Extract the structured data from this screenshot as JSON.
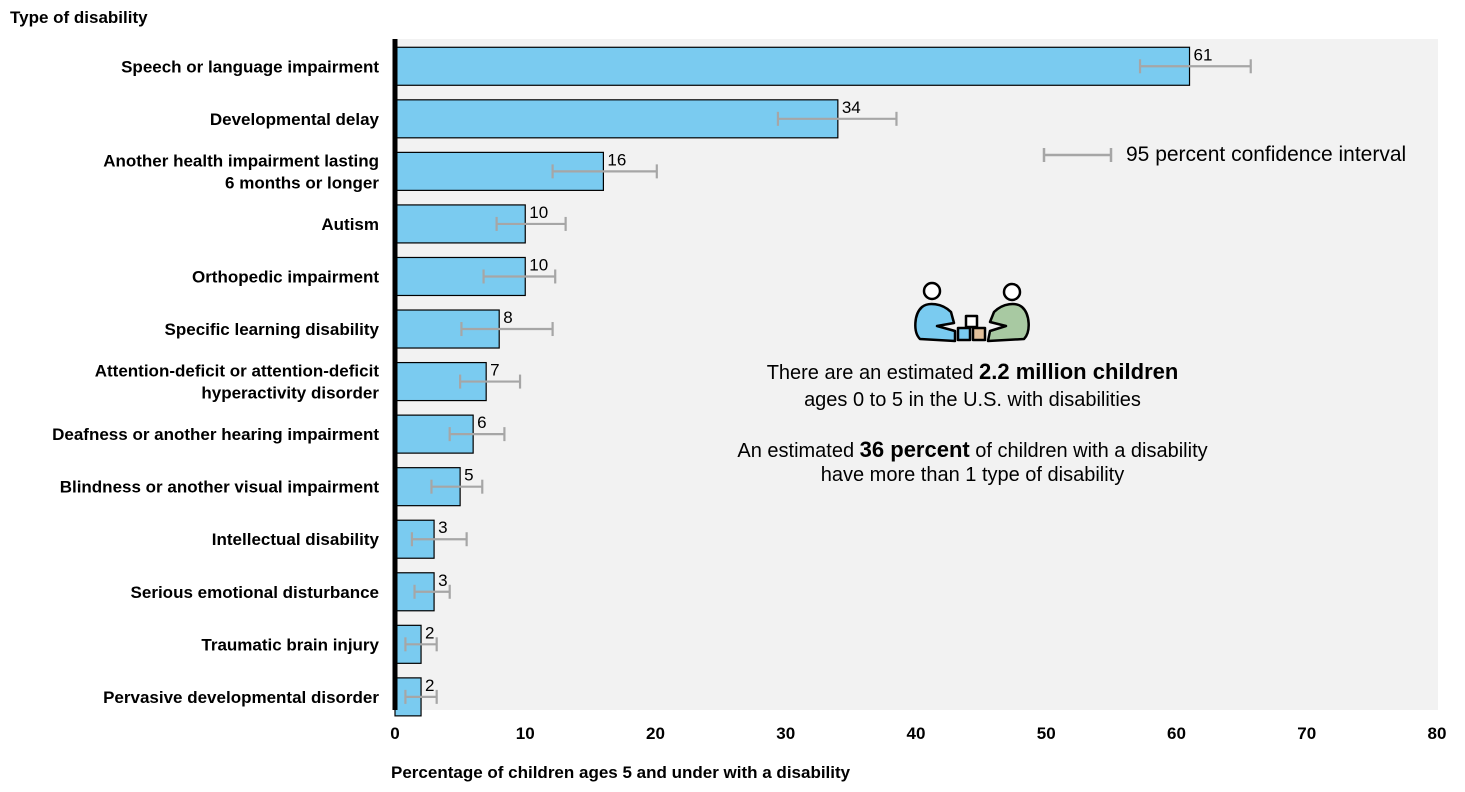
{
  "chart_data": {
    "type": "bar",
    "orientation": "horizontal",
    "ylabel": "Type of disability",
    "xlabel": "Percentage of children ages 5 and under with a disability",
    "xlim": [
      0,
      80
    ],
    "xticks": [
      0,
      10,
      20,
      30,
      40,
      50,
      60,
      70,
      80
    ],
    "categories": [
      [
        "Speech or language impairment"
      ],
      [
        "Developmental delay"
      ],
      [
        "Another health impairment lasting",
        "6 months or longer"
      ],
      [
        "Autism"
      ],
      [
        "Orthopedic impairment"
      ],
      [
        "Specific learning disability"
      ],
      [
        "Attention-deficit or attention-deficit",
        "hyperactivity disorder"
      ],
      [
        "Deafness or another hearing impairment"
      ],
      [
        "Blindness or another visual impairment"
      ],
      [
        "Intellectual disability"
      ],
      [
        "Serious emotional disturbance"
      ],
      [
        "Traumatic brain injury"
      ],
      [
        "Pervasive developmental disorder"
      ]
    ],
    "values": [
      61,
      34,
      16,
      10,
      10,
      8,
      7,
      6,
      5,
      3,
      3,
      2,
      2
    ],
    "ci_low": [
      57.2,
      29.4,
      12.1,
      7.8,
      6.8,
      5.1,
      5.0,
      4.2,
      2.8,
      1.3,
      1.5,
      0.8,
      0.8
    ],
    "ci_high": [
      65.7,
      38.5,
      20.1,
      13.1,
      12.3,
      12.1,
      9.6,
      8.4,
      6.7,
      5.5,
      4.2,
      3.2,
      3.2
    ],
    "bar_color": "#7acbf0",
    "errorbar_color": "#a6a6a6",
    "plot_background": "#f2f2f2",
    "grid": false,
    "legend": {
      "label": "95 percent confidence interval",
      "placement": "top-right"
    }
  },
  "annotation": {
    "line1_pre": "There are an estimated ",
    "line1_bold": "2.2 million children",
    "line2": "ages 0 to 5 in the U.S. with disabilities",
    "line3_pre": "An estimated ",
    "line3_bold": "36 percent",
    "line3_post": " of children with a disability",
    "line4": "have more than 1 type of disability",
    "icon": "children-playing-blocks-icon"
  }
}
